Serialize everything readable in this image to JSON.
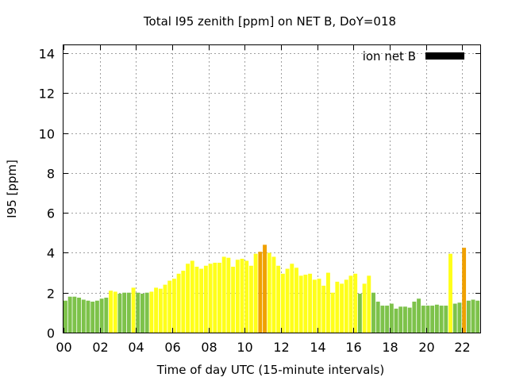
{
  "chart_data": {
    "type": "bar",
    "title": "Total I95 zenith [ppm] on NET B, DoY=018",
    "xlabel": "Time of day UTC (15-minute intervals)",
    "ylabel": "I95 [ppm]",
    "xlim": [
      0,
      23
    ],
    "ylim": [
      0,
      14.4
    ],
    "xticks": [
      0,
      2,
      4,
      6,
      8,
      10,
      12,
      14,
      16,
      18,
      20,
      22
    ],
    "xtick_labels": [
      "00",
      "02",
      "04",
      "06",
      "08",
      "10",
      "12",
      "14",
      "16",
      "18",
      "20",
      "22"
    ],
    "yticks": [
      0,
      2,
      4,
      6,
      8,
      10,
      12,
      14
    ],
    "ytick_labels": [
      "0",
      "2",
      "4",
      "6",
      "8",
      "10",
      "12",
      "14"
    ],
    "grid": true,
    "legend": {
      "label": "ion net B",
      "position": "top-right",
      "color": "#000000"
    },
    "bar_interval_hours": 0.25,
    "colors": {
      "green": "#7dc24a",
      "yellow": "#ffff1a",
      "orange": "#f0a000"
    },
    "series": [
      {
        "x": [
          0.0,
          0.25,
          0.5,
          0.75,
          1.0,
          1.25,
          1.5,
          1.75,
          2.0,
          2.25,
          2.5,
          2.75,
          3.0,
          3.25,
          3.5,
          3.75,
          4.0,
          4.25,
          4.5,
          4.75,
          5.0,
          5.25,
          5.5,
          5.75,
          6.0,
          6.25,
          6.5,
          6.75,
          7.0,
          7.25,
          7.5,
          7.75,
          8.0,
          8.25,
          8.5,
          8.75,
          9.0,
          9.25,
          9.5,
          9.75,
          10.0,
          10.25,
          10.5,
          10.75,
          11.0,
          11.25,
          11.5,
          11.75,
          12.0,
          12.25,
          12.5,
          12.75,
          13.0,
          13.25,
          13.5,
          13.75,
          14.0,
          14.25,
          14.5,
          14.75,
          15.0,
          15.25,
          15.5,
          15.75,
          16.0,
          16.25,
          16.5,
          16.75,
          17.0,
          17.25,
          17.5,
          17.75,
          18.0,
          18.25,
          18.5,
          18.75,
          19.0,
          19.25,
          19.5,
          19.75,
          20.0,
          20.25,
          20.5,
          20.75,
          21.0,
          21.25,
          21.5,
          21.75,
          22.0,
          22.25,
          22.5,
          22.75
        ],
        "values": [
          1.6,
          1.8,
          1.8,
          1.75,
          1.65,
          1.6,
          1.55,
          1.6,
          1.7,
          1.75,
          2.1,
          2.05,
          1.95,
          2.0,
          2.0,
          2.25,
          2.0,
          1.95,
          2.0,
          2.05,
          2.25,
          2.2,
          2.4,
          2.6,
          2.7,
          2.95,
          3.1,
          3.45,
          3.6,
          3.3,
          3.2,
          3.35,
          3.45,
          3.5,
          3.5,
          3.8,
          3.75,
          3.3,
          3.65,
          3.7,
          3.6,
          3.35,
          3.95,
          4.05,
          4.4,
          4.0,
          3.8,
          3.35,
          2.95,
          3.2,
          3.45,
          3.25,
          2.85,
          2.9,
          2.95,
          2.65,
          2.7,
          2.35,
          3.0,
          2.0,
          2.55,
          2.45,
          2.65,
          2.85,
          2.95,
          1.95,
          2.45,
          2.85,
          2.0,
          1.55,
          1.35,
          1.35,
          1.45,
          1.2,
          1.3,
          1.3,
          1.25,
          1.55,
          1.7,
          1.35,
          1.35,
          1.35,
          1.4,
          1.35,
          1.35,
          3.95,
          1.45,
          1.5,
          4.25,
          1.6,
          1.65,
          1.6
        ],
        "colors": [
          "green",
          "green",
          "green",
          "green",
          "green",
          "green",
          "green",
          "green",
          "green",
          "green",
          "yellow",
          "yellow",
          "green",
          "green",
          "green",
          "yellow",
          "green",
          "green",
          "green",
          "yellow",
          "yellow",
          "yellow",
          "yellow",
          "yellow",
          "yellow",
          "yellow",
          "yellow",
          "yellow",
          "yellow",
          "yellow",
          "yellow",
          "yellow",
          "yellow",
          "yellow",
          "yellow",
          "yellow",
          "yellow",
          "yellow",
          "yellow",
          "yellow",
          "yellow",
          "yellow",
          "yellow",
          "orange",
          "orange",
          "yellow",
          "yellow",
          "yellow",
          "yellow",
          "yellow",
          "yellow",
          "yellow",
          "yellow",
          "yellow",
          "yellow",
          "yellow",
          "yellow",
          "yellow",
          "yellow",
          "yellow",
          "yellow",
          "yellow",
          "yellow",
          "yellow",
          "yellow",
          "green",
          "yellow",
          "yellow",
          "green",
          "green",
          "green",
          "green",
          "green",
          "green",
          "green",
          "green",
          "green",
          "green",
          "green",
          "green",
          "green",
          "green",
          "green",
          "green",
          "green",
          "yellow",
          "green",
          "green",
          "orange",
          "green",
          "green",
          "green"
        ]
      }
    ]
  }
}
